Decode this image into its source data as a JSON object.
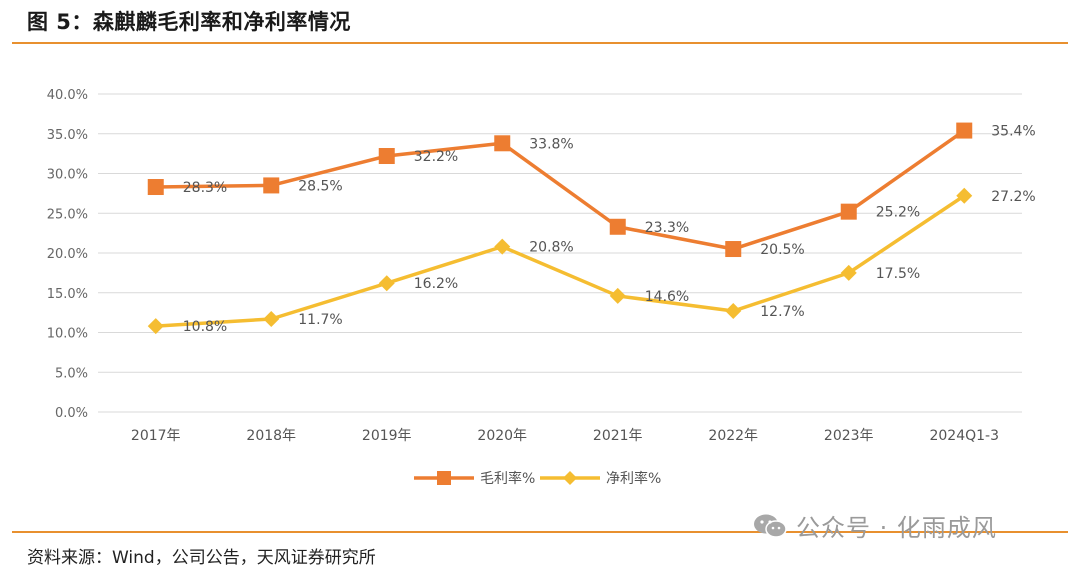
{
  "title": "图 5：森麒麟毛利率和净利率情况",
  "source": "资料来源：Wind，公司公告，天风证券研究所",
  "watermark": "公众号 · 化雨成风",
  "colors": {
    "gross": "#ed7d31",
    "net": "#f5bd31",
    "grid": "#d9d9d9",
    "rule": "#e8902f"
  },
  "chart_data": {
    "type": "line",
    "categories": [
      "2017年",
      "2018年",
      "2019年",
      "2020年",
      "2021年",
      "2022年",
      "2023年",
      "2024Q1-3"
    ],
    "ylim": [
      0,
      40
    ],
    "yticks": [
      "0.0%",
      "5.0%",
      "10.0%",
      "15.0%",
      "20.0%",
      "25.0%",
      "30.0%",
      "35.0%",
      "40.0%"
    ],
    "grid": true,
    "legend_position": "bottom",
    "series": [
      {
        "name": "毛利率%",
        "marker": "square",
        "values": [
          28.3,
          28.5,
          32.2,
          33.8,
          23.3,
          20.5,
          25.2,
          35.4
        ],
        "labels": [
          "28.3%",
          "28.5%",
          "32.2%",
          "33.8%",
          "23.3%",
          "20.5%",
          "25.2%",
          "35.4%"
        ]
      },
      {
        "name": "净利率%",
        "marker": "diamond",
        "values": [
          10.8,
          11.7,
          16.2,
          20.8,
          14.6,
          12.7,
          17.5,
          27.2
        ],
        "labels": [
          "10.8%",
          "11.7%",
          "16.2%",
          "20.8%",
          "14.6%",
          "12.7%",
          "17.5%",
          "27.2%"
        ]
      }
    ]
  }
}
